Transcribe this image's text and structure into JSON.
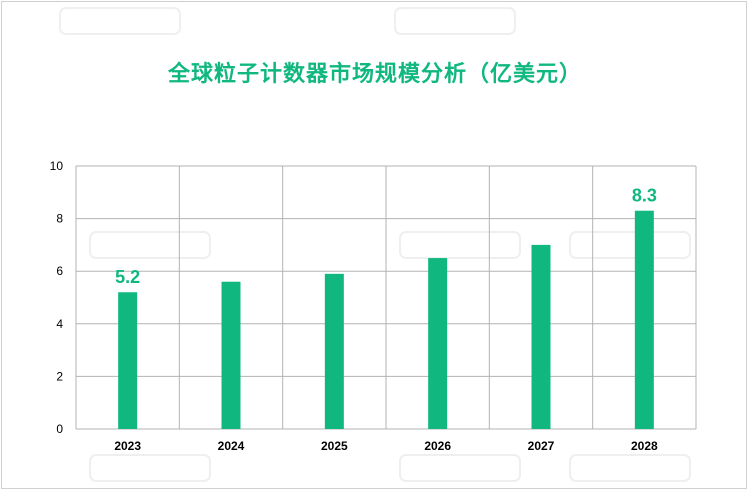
{
  "colors": {
    "accent": "#10b87f",
    "title": "#10b87f",
    "grid": "#b3b3b3",
    "watermark": "#e8e8e8"
  },
  "chart_data": {
    "type": "bar",
    "title": "全球粒子计数器市场规模分析（亿美元）",
    "xlabel": "",
    "ylabel": "",
    "categories": [
      "2023",
      "2024",
      "2025",
      "2026",
      "2027",
      "2028"
    ],
    "series": [
      {
        "values": [
          5.2,
          5.6,
          5.9,
          6.5,
          7.0,
          8.3
        ]
      }
    ],
    "data_labels": [
      {
        "category": "2023",
        "text": "5.2"
      },
      {
        "category": "2028",
        "text": "8.3"
      }
    ],
    "ylim": [
      0,
      10
    ],
    "yticks": [
      0,
      2,
      4,
      6,
      8,
      10
    ],
    "grid": true,
    "legend": "none"
  }
}
